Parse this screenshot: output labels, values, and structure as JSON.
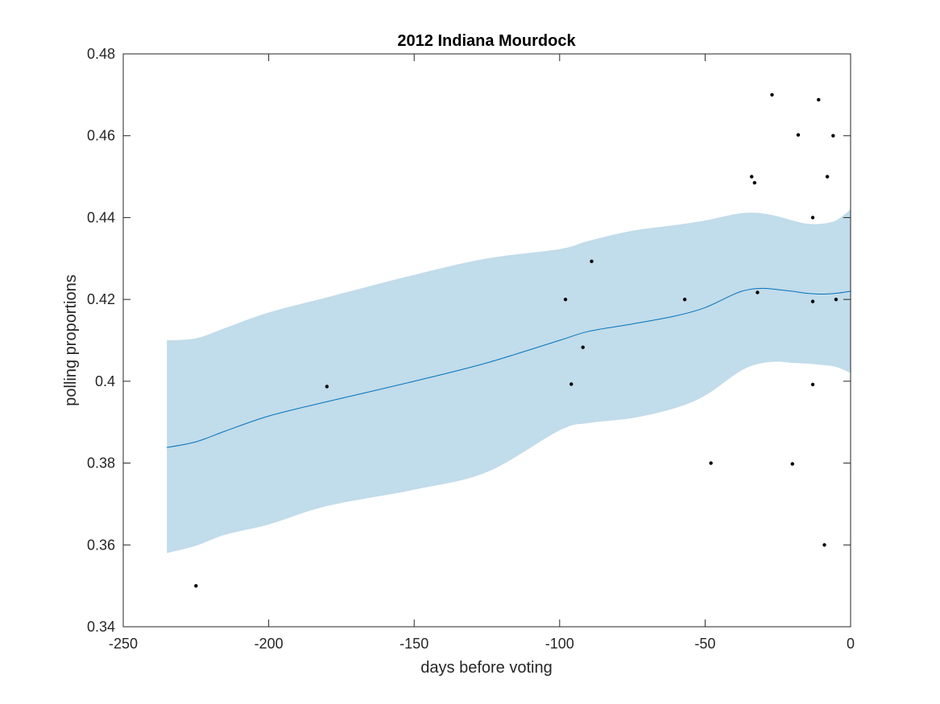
{
  "chart_data": {
    "type": "line",
    "title": "2012 Indiana Mourdock",
    "xlabel": "days before voting",
    "ylabel": "polling proportions",
    "xlim": [
      -250,
      0
    ],
    "ylim": [
      0.34,
      0.48
    ],
    "xticks": [
      -250,
      -200,
      -150,
      -100,
      -50,
      0
    ],
    "xtick_labels": [
      "-250",
      "-200",
      "-150",
      "-100",
      "-50",
      "0"
    ],
    "yticks": [
      0.34,
      0.36,
      0.38,
      0.4,
      0.42,
      0.44,
      0.46,
      0.48
    ],
    "ytick_labels": [
      "0.34",
      "0.36",
      "0.38",
      "0.4",
      "0.42",
      "0.44",
      "0.46",
      "0.48"
    ],
    "grid": false,
    "colors": {
      "fit_line": "#0072bd",
      "band": "#c1dcea",
      "points": "#000000",
      "axes": "#262626"
    },
    "fit": {
      "x": [
        -235,
        -225,
        -215,
        -200,
        -180,
        -150,
        -125,
        -100,
        -90,
        -75,
        -60,
        -50,
        -40,
        -35,
        -30,
        -25,
        -20,
        -15,
        -10,
        -5,
        0
      ],
      "y": [
        0.3838,
        0.3852,
        0.3878,
        0.3915,
        0.395,
        0.4,
        0.4045,
        0.41,
        0.4122,
        0.414,
        0.416,
        0.418,
        0.4213,
        0.4224,
        0.4227,
        0.4224,
        0.422,
        0.4215,
        0.4213,
        0.4215,
        0.422
      ]
    },
    "band": {
      "x": [
        -235,
        -225,
        -215,
        -200,
        -180,
        -150,
        -125,
        -100,
        -90,
        -75,
        -60,
        -50,
        -40,
        -35,
        -30,
        -25,
        -20,
        -15,
        -10,
        -5,
        0
      ],
      "upper": [
        0.41,
        0.4105,
        0.413,
        0.4168,
        0.4205,
        0.426,
        0.43,
        0.4323,
        0.4343,
        0.4368,
        0.4382,
        0.4393,
        0.4408,
        0.4412,
        0.441,
        0.4403,
        0.4393,
        0.4385,
        0.4385,
        0.4393,
        0.442
      ],
      "lower": [
        0.358,
        0.3598,
        0.3625,
        0.365,
        0.3695,
        0.3735,
        0.3778,
        0.388,
        0.3898,
        0.391,
        0.3935,
        0.3965,
        0.4015,
        0.4035,
        0.4045,
        0.4048,
        0.4045,
        0.4043,
        0.404,
        0.4035,
        0.402
      ]
    },
    "points": {
      "x": [
        -225,
        -180,
        -98,
        -96,
        -92,
        -89,
        -57,
        -48,
        -34,
        -33,
        -32,
        -27,
        -20,
        -18,
        -13,
        -13,
        -13,
        -11,
        -9,
        -8,
        -6,
        -5
      ],
      "y": [
        0.35,
        0.3987,
        0.42,
        0.3993,
        0.4083,
        0.4293,
        0.42,
        0.38,
        0.45,
        0.4485,
        0.4217,
        0.47,
        0.3798,
        0.4602,
        0.44,
        0.4195,
        0.3992,
        0.4688,
        0.36,
        0.45,
        0.46,
        0.42
      ]
    }
  }
}
